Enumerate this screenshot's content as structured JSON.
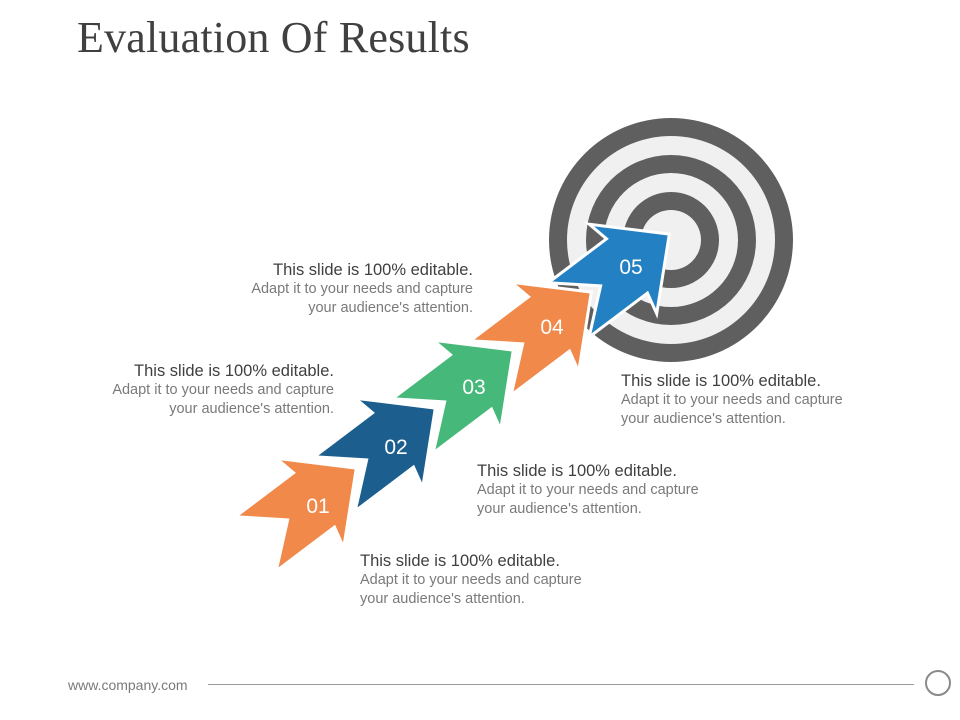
{
  "title": "Evaluation Of Results",
  "colors": {
    "orange": "#f0894a",
    "blue_dark": "#1c5f8e",
    "green": "#46b87a",
    "blue": "#2280c3",
    "target_dark": "#5f5f5f",
    "target_light": "#f0f0f0"
  },
  "steps": [
    {
      "number": "01",
      "heading": "This slide is 100% editable.",
      "line1": "Adapt it to your needs and capture",
      "line2": "your audience's attention."
    },
    {
      "number": "02",
      "heading": "This slide is 100% editable.",
      "line1": "Adapt it to your needs and capture",
      "line2": "your audience's attention."
    },
    {
      "number": "03",
      "heading": "This slide is 100% editable.",
      "line1": "Adapt it to your needs and capture",
      "line2": "your audience's attention."
    },
    {
      "number": "04",
      "heading": "This slide is 100% editable.",
      "line1": "Adapt it to your needs and capture",
      "line2": "your audience's attention."
    },
    {
      "number": "05",
      "heading": "This slide is 100% editable.",
      "line1": "Adapt it to your needs and capture",
      "line2": "your audience's attention."
    }
  ],
  "footer": {
    "website": "www.company.com"
  }
}
